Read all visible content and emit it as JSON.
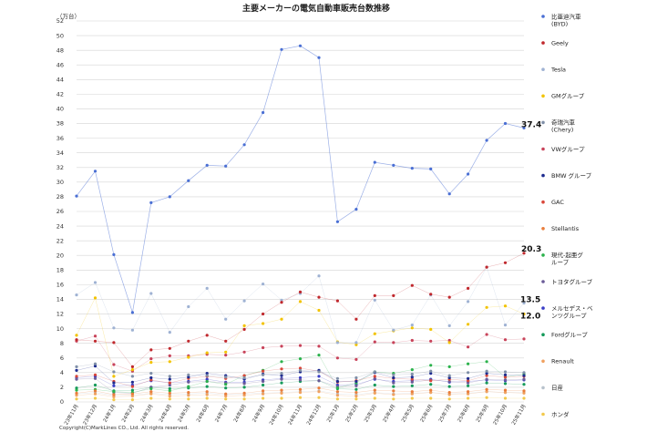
{
  "chart_data": {
    "type": "line",
    "title": "主要メーカーの電気自動車販売台数推移",
    "ylabel": "（万台）",
    "ylim": [
      0,
      52
    ],
    "yticks": [
      0,
      2,
      4,
      6,
      8,
      10,
      12,
      14,
      16,
      18,
      20,
      22,
      24,
      26,
      28,
      30,
      32,
      34,
      36,
      38,
      40,
      42,
      44,
      46,
      48,
      50,
      52
    ],
    "grid": true,
    "legend_position": "right",
    "categories": [
      "23年11月",
      "23年12月",
      "24年1月",
      "24年2月",
      "24年3月",
      "24年4月",
      "24年5月",
      "24年6月",
      "24年7月",
      "24年8月",
      "24年9月",
      "24年10月",
      "24年11月",
      "24年12月",
      "25年1月",
      "25年2月",
      "25年3月",
      "25年4月",
      "25年5月",
      "25年6月",
      "25年7月",
      "25年8月",
      "25年9月",
      "25年10月",
      "25年11月"
    ],
    "series": [
      {
        "name": "比亜迪汽車\n(BYD)",
        "color": "#4a6fd4",
        "values": [
          28.1,
          31.5,
          20.1,
          12.2,
          27.2,
          28.0,
          30.2,
          32.3,
          32.2,
          35.1,
          39.5,
          48.1,
          48.6,
          47.0,
          24.6,
          26.3,
          32.7,
          32.3,
          31.9,
          31.8,
          28.4,
          31.1,
          35.7,
          38.0,
          37.4
        ]
      },
      {
        "name": "Geely",
        "color": "#c0282d",
        "values": [
          8.5,
          8.3,
          8.1,
          4.8,
          7.1,
          7.3,
          8.3,
          9.1,
          8.3,
          9.9,
          12.0,
          13.6,
          15.0,
          14.3,
          13.8,
          11.3,
          14.5,
          14.5,
          15.9,
          14.7,
          14.3,
          15.5,
          18.4,
          19.0,
          20.3
        ]
      },
      {
        "name": "Tesla",
        "color": "#9fb2d3",
        "values": [
          14.6,
          16.3,
          10.1,
          9.8,
          14.8,
          9.5,
          13.0,
          15.5,
          11.3,
          13.8,
          16.1,
          13.9,
          14.8,
          17.2,
          8.1,
          8.1,
          13.9,
          9.8,
          10.5,
          14.6,
          10.4,
          13.7,
          18.4,
          10.5,
          13.5
        ]
      },
      {
        "name": "GMグループ",
        "color": "#f2c300",
        "values": [
          9.1,
          14.2,
          3.5,
          4.4,
          5.4,
          5.5,
          6.1,
          6.7,
          6.8,
          10.4,
          10.7,
          11.3,
          13.7,
          12.5,
          8.2,
          7.8,
          9.3,
          9.7,
          10.1,
          9.9,
          8.1,
          10.6,
          12.9,
          13.1,
          12.0
        ]
      },
      {
        "name": "奇瑞汽車\n(Chery)",
        "color": "#7f8fa8",
        "values": [
          4.8,
          5.2,
          4.1,
          3.5,
          3.9,
          3.5,
          3.7,
          3.6,
          3.4,
          3.3,
          3.7,
          3.9,
          4.3,
          4.1,
          3.2,
          3.3,
          4.1,
          3.7,
          3.8,
          4.2,
          3.6,
          4.0,
          4.2,
          4.1,
          4.0
        ]
      },
      {
        "name": "VWグループ",
        "color": "#c8435a",
        "values": [
          8.3,
          9.0,
          5.1,
          4.2,
          5.9,
          6.3,
          6.3,
          6.5,
          6.4,
          6.8,
          7.4,
          7.6,
          7.7,
          7.6,
          6.0,
          5.8,
          8.2,
          8.1,
          8.4,
          8.3,
          8.4,
          7.5,
          9.2,
          8.5,
          8.6
        ]
      },
      {
        "name": "BMW グループ",
        "color": "#1d2b8f",
        "values": [
          4.3,
          4.9,
          2.6,
          2.7,
          3.3,
          3.1,
          3.4,
          3.9,
          3.6,
          3.1,
          3.8,
          3.6,
          4.1,
          4.3,
          2.8,
          2.8,
          4.0,
          3.3,
          3.4,
          3.9,
          3.3,
          3.2,
          3.9,
          3.7,
          3.6
        ]
      },
      {
        "name": "GAC",
        "color": "#d9473a",
        "values": [
          3.5,
          3.7,
          2.8,
          2.1,
          3.0,
          2.6,
          3.2,
          3.5,
          3.2,
          3.6,
          4.2,
          4.5,
          4.6,
          4.2,
          2.7,
          2.9,
          3.5,
          3.2,
          3.1,
          2.9,
          3.1,
          2.9,
          3.6,
          3.4,
          3.5
        ]
      },
      {
        "name": "Stellantis",
        "color": "#e97d3b",
        "values": [
          1.2,
          1.5,
          1.0,
          1.1,
          1.4,
          1.2,
          1.3,
          1.4,
          1.1,
          1.2,
          1.5,
          1.6,
          1.7,
          1.9,
          1.4,
          1.3,
          1.6,
          1.5,
          1.4,
          1.6,
          1.3,
          1.4,
          1.7,
          1.6,
          1.5
        ]
      },
      {
        "name": "現代-起亜グ\nループ",
        "color": "#2bb24c",
        "values": [
          1.6,
          1.7,
          1.4,
          1.3,
          1.8,
          1.5,
          2.1,
          2.8,
          2.4,
          3.6,
          4.3,
          5.5,
          5.9,
          6.4,
          1.9,
          2.6,
          4.1,
          3.9,
          4.4,
          5.0,
          4.8,
          5.2,
          5.5,
          3.4,
          3.8
        ]
      },
      {
        "name": "トヨタグループ",
        "color": "#6a5b98",
        "values": [
          3.1,
          3.2,
          1.3,
          1.2,
          2.0,
          2.3,
          2.7,
          2.8,
          2.6,
          2.5,
          2.8,
          3.1,
          3.0,
          2.9,
          2.1,
          2.2,
          3.2,
          2.6,
          2.7,
          3.0,
          2.8,
          2.6,
          3.1,
          3.0,
          3.1
        ]
      },
      {
        "name": "メルセデス・ベ\nンツグループ",
        "color": "#3a3ec6",
        "values": [
          3.3,
          3.5,
          2.2,
          2.3,
          2.9,
          2.6,
          2.8,
          3.1,
          2.7,
          2.7,
          3.0,
          3.2,
          3.3,
          3.5,
          2.3,
          2.4,
          3.1,
          2.8,
          2.9,
          3.1,
          2.7,
          2.8,
          3.0,
          2.9,
          3.0
        ]
      },
      {
        "name": "Fordグループ",
        "color": "#159a5a",
        "values": [
          1.9,
          2.3,
          1.5,
          1.6,
          2.0,
          1.8,
          1.9,
          2.1,
          1.9,
          2.0,
          2.3,
          2.6,
          2.8,
          2.9,
          1.8,
          1.7,
          2.3,
          2.1,
          2.2,
          2.4,
          2.1,
          2.2,
          2.6,
          2.5,
          2.4
        ]
      },
      {
        "name": "Renault",
        "color": "#f0a160",
        "values": [
          0.9,
          1.1,
          0.7,
          0.8,
          1.1,
          0.8,
          0.9,
          1.0,
          0.8,
          0.9,
          1.1,
          1.2,
          1.3,
          1.4,
          0.9,
          0.8,
          1.2,
          1.0,
          1.1,
          1.3,
          1.0,
          1.1,
          1.4,
          1.3,
          1.2
        ]
      },
      {
        "name": "日産",
        "color": "#b8c2cc",
        "values": [
          1.1,
          1.3,
          0.9,
          0.9,
          1.2,
          1.0,
          1.1,
          1.2,
          1.0,
          1.1,
          1.2,
          1.3,
          1.4,
          1.5,
          1.1,
          1.0,
          1.3,
          1.1,
          1.2,
          1.3,
          1.1,
          1.2,
          1.4,
          1.3,
          1.3
        ]
      },
      {
        "name": "ホンダ",
        "color": "#f2c94c",
        "values": [
          0.4,
          0.5,
          0.3,
          0.3,
          0.5,
          0.4,
          0.4,
          0.5,
          0.4,
          0.4,
          0.5,
          0.5,
          0.6,
          0.6,
          0.4,
          0.4,
          0.5,
          0.4,
          0.5,
          0.5,
          0.4,
          0.5,
          0.6,
          0.5,
          0.5
        ]
      }
    ],
    "annotations": [
      {
        "text": "37.4",
        "series": 0,
        "index": 24
      },
      {
        "text": "20.3",
        "series": 1,
        "index": 24
      },
      {
        "text": "13.5",
        "series": 2,
        "index": 24
      },
      {
        "text": "12.0",
        "series": 3,
        "index": 24
      }
    ]
  },
  "copyright": "Copyright(C)MarkLines CO., Ltd. All rights reserved."
}
